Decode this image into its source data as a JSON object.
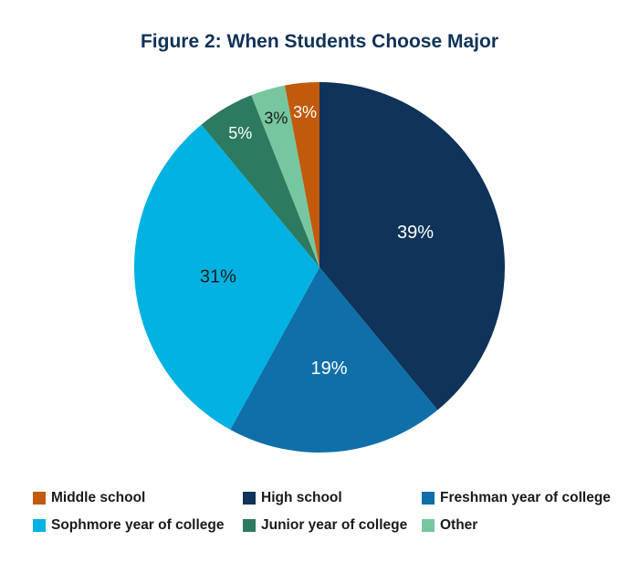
{
  "chart_data": {
    "type": "pie",
    "title": "Figure 2: When Students Choose Major",
    "start_angle_deg": 0,
    "direction": "clockwise",
    "slices": [
      {
        "label": "High school",
        "value": 39,
        "display": "39%",
        "color": "#0f3359",
        "text_color": "#ffffff"
      },
      {
        "label": "Freshman year of college",
        "value": 19,
        "display": "19%",
        "color": "#0f6fa8",
        "text_color": "#ffffff"
      },
      {
        "label": "Sophmore year of college",
        "value": 31,
        "display": "31%",
        "color": "#00b2e2",
        "text_color": "#1b1b1b"
      },
      {
        "label": "Junior year of college",
        "value": 5,
        "display": "5%",
        "color": "#2c7a60",
        "text_color": "#ffffff"
      },
      {
        "label": "Other",
        "value": 3,
        "display": "3%",
        "color": "#76c7a0",
        "text_color": "#1b1b1b"
      },
      {
        "label": "Middle school",
        "value": 3,
        "display": "3%",
        "color": "#c15a0b",
        "text_color": "#ffffff"
      }
    ],
    "legend": {
      "placement": "bottom",
      "entries": [
        {
          "label": "Middle school",
          "color": "#c15a0b"
        },
        {
          "label": "High school",
          "color": "#0f3359"
        },
        {
          "label": "Freshman year of college",
          "color": "#0f6fa8"
        },
        {
          "label": "Sophmore year of college",
          "color": "#00b2e2"
        },
        {
          "label": "Junior year of college",
          "color": "#2c7a60"
        },
        {
          "label": "Other",
          "color": "#76c7a0"
        }
      ]
    }
  }
}
